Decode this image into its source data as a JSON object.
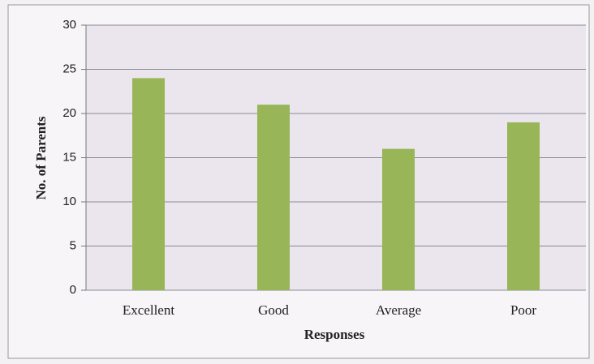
{
  "chart_data": {
    "type": "bar",
    "x_label": "Responses",
    "y_label": "No. of Parents",
    "categories": [
      "Excellent",
      "Good",
      "Average",
      "Poor"
    ],
    "values": [
      24,
      21,
      16,
      19
    ],
    "color": "#98b658",
    "ylim": [
      0,
      30
    ],
    "yticks": [
      0,
      5,
      10,
      15,
      20,
      25,
      30
    ],
    "grid": true
  }
}
